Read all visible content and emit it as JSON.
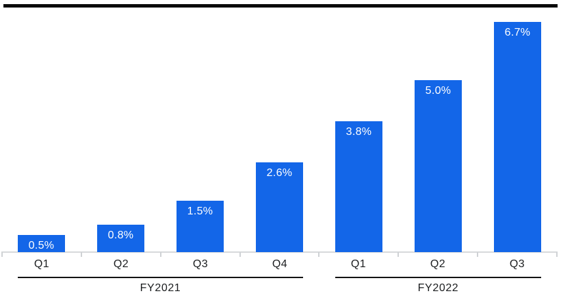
{
  "window": {
    "background_color": "#ffffff",
    "top_rule_color": "#0a0a0a"
  },
  "chart_data": {
    "type": "bar",
    "title": "",
    "xlabel": "",
    "ylabel": "",
    "unit": "%",
    "ylim": [
      0,
      7.1
    ],
    "grid": false,
    "legend": false,
    "bar_color": "#1366e8",
    "value_label_color": "#ffffff",
    "axis_label_color": "#1b1d1f",
    "axis_line_color": "#d7d9db",
    "tick_color": "#cfd2d5",
    "group_line_color": "#141414",
    "group_label_color": "#1b1d1f",
    "groups": [
      {
        "label": "FY2021",
        "categories": [
          "Q1",
          "Q2",
          "Q3",
          "Q4"
        ],
        "values": [
          0.5,
          0.8,
          1.5,
          2.6
        ],
        "value_labels": [
          "0.5%",
          "0.8%",
          "1.5%",
          "2.6%"
        ]
      },
      {
        "label": "FY2022",
        "categories": [
          "Q1",
          "Q2",
          "Q3"
        ],
        "values": [
          3.8,
          5.0,
          6.7
        ],
        "value_labels": [
          "3.8%",
          "5.0%",
          "6.7%"
        ]
      }
    ]
  }
}
